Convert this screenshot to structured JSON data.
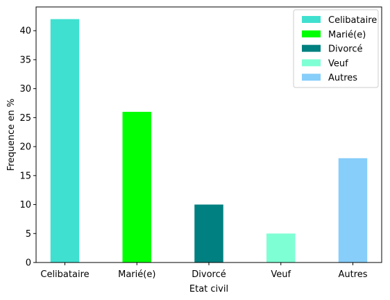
{
  "chart_data": {
    "type": "bar",
    "categories": [
      "Celibataire",
      "Marié(e)",
      "Divorcé",
      "Veuf",
      "Autres"
    ],
    "values": [
      42,
      26,
      10,
      5,
      18
    ],
    "colors": [
      "#40e0d0",
      "#00ff00",
      "#008080",
      "#7fffd4",
      "#87cefa"
    ],
    "title": "",
    "xlabel": "Etat civil",
    "ylabel": "Frequence en %",
    "ylim": [
      0,
      44.1
    ],
    "yticks": [
      0,
      5,
      10,
      15,
      20,
      25,
      30,
      35,
      40
    ],
    "grid": false,
    "legend": {
      "placement": "top-right",
      "entries": [
        "Celibataire",
        "Marié(e)",
        "Divorcé",
        "Veuf",
        "Autres"
      ]
    }
  }
}
